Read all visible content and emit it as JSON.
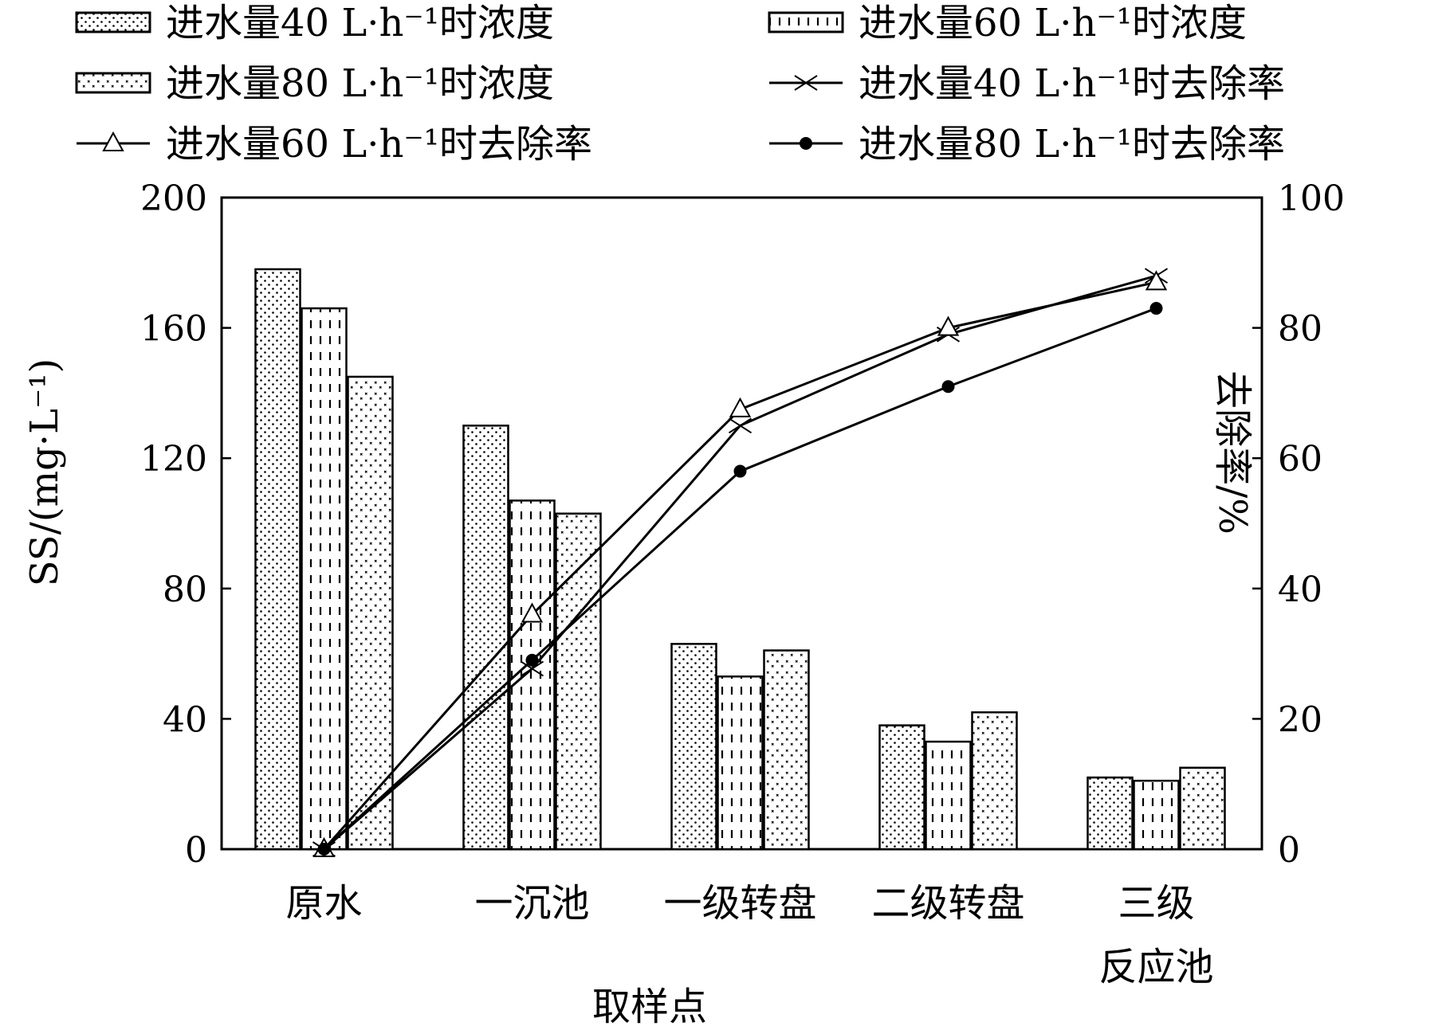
{
  "chart_data": {
    "type": "bar",
    "categories": [
      "原水",
      "一沉池",
      "一级转盘",
      "二级转盘",
      "三级\n反应池"
    ],
    "xlabel": "取样点",
    "ylabel_left": "SS/(mg·L⁻¹)",
    "ylabel_right": "去除率/%",
    "ylim_left": [
      0,
      200
    ],
    "ylim_right": [
      0,
      100
    ],
    "yticks_left": [
      0,
      40,
      80,
      120,
      160,
      200
    ],
    "yticks_right": [
      0,
      20,
      40,
      60,
      80,
      100
    ],
    "legend_position": "top",
    "bar_series": [
      {
        "name": "进水量40 L·h⁻¹时浓度",
        "pattern": "dots",
        "values": [
          178,
          130,
          63,
          38,
          22
        ]
      },
      {
        "name": "进水量60 L·h⁻¹时浓度",
        "pattern": "dashes",
        "values": [
          166,
          107,
          53,
          33,
          21
        ]
      },
      {
        "name": "进水量80 L·h⁻¹时浓度",
        "pattern": "crosses",
        "values": [
          145,
          103,
          61,
          42,
          25
        ]
      }
    ],
    "line_series": [
      {
        "name": "进水量40 L·h⁻¹时去除率",
        "marker": "x",
        "values": [
          0,
          27.7,
          65,
          79,
          88
        ]
      },
      {
        "name": "进水量60 L·h⁻¹时去除率",
        "marker": "triangle",
        "values": [
          0,
          36,
          67.5,
          80,
          87
        ]
      },
      {
        "name": "进水量80 L·h⁻¹时去除率",
        "marker": "dot",
        "values": [
          0,
          29,
          58,
          71,
          83
        ]
      }
    ]
  }
}
